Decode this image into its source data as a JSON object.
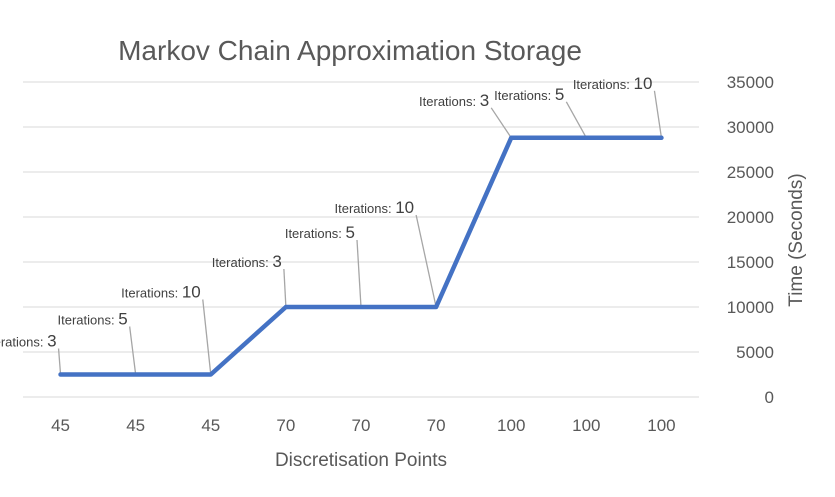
{
  "chart_data": {
    "type": "line",
    "title": "Markov Chain Approximation Storage",
    "xlabel": "Discretisation Points",
    "ylabel": "Time (Seconds)",
    "categories": [
      "45",
      "45",
      "45",
      "70",
      "70",
      "70",
      "100",
      "100",
      "100"
    ],
    "series": [
      {
        "values": [
          2500,
          2500,
          2500,
          10000,
          10000,
          10000,
          28800,
          28800,
          28800
        ],
        "color": "#4472c4"
      }
    ],
    "data_labels": [
      {
        "prefix": "Iterations: ",
        "value": "3"
      },
      {
        "prefix": "Iterations: ",
        "value": "5"
      },
      {
        "prefix": "Iterations: ",
        "value": "10"
      },
      {
        "prefix": "Iterations: ",
        "value": "3"
      },
      {
        "prefix": "Iterations: ",
        "value": "5"
      },
      {
        "prefix": "Iterations: ",
        "value": "10"
      },
      {
        "prefix": "Iterations: ",
        "value": "3"
      },
      {
        "prefix": "Iterations: ",
        "value": "5"
      },
      {
        "prefix": "Iterations: ",
        "value": "10"
      }
    ],
    "yticks": [
      0,
      5000,
      10000,
      15000,
      20000,
      25000,
      30000,
      35000
    ],
    "ylim": [
      0,
      35000
    ],
    "y_axis_side": "right",
    "grid": true,
    "legend": "none"
  }
}
